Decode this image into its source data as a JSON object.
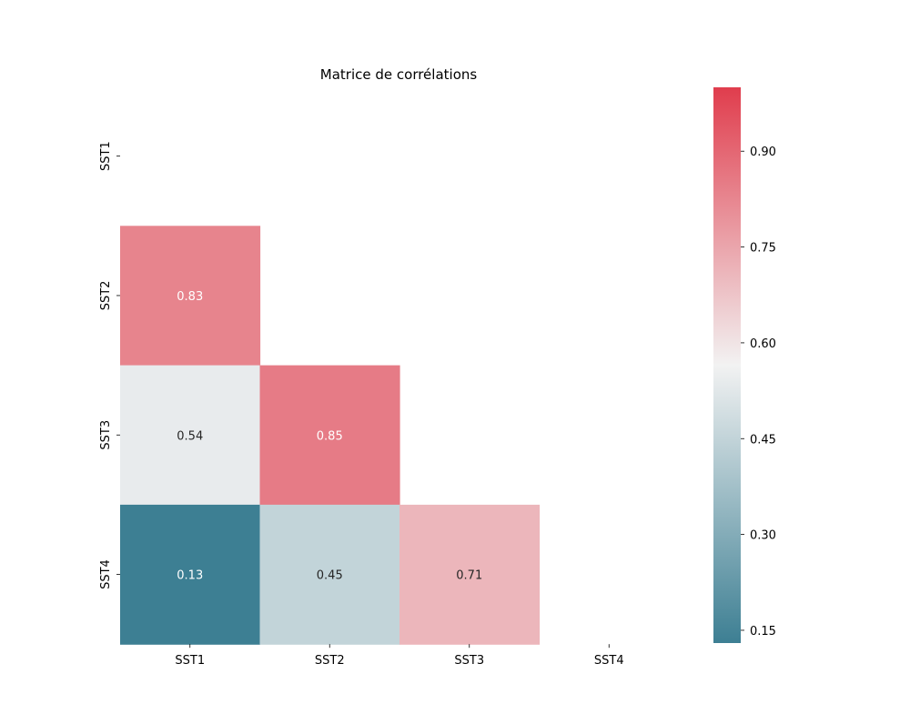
{
  "chart_data": {
    "type": "heatmap",
    "title": "Matrice de corrélations",
    "x_categories": [
      "SST1",
      "SST2",
      "SST3",
      "SST4"
    ],
    "y_categories": [
      "SST1",
      "SST2",
      "SST3",
      "SST4"
    ],
    "mask": "upper-triangle-including-diagonal",
    "cells": [
      {
        "row": 1,
        "col": 0,
        "value": 0.83,
        "label": "0.83"
      },
      {
        "row": 2,
        "col": 0,
        "value": 0.54,
        "label": "0.54"
      },
      {
        "row": 2,
        "col": 1,
        "value": 0.85,
        "label": "0.85"
      },
      {
        "row": 3,
        "col": 0,
        "value": 0.13,
        "label": "0.13"
      },
      {
        "row": 3,
        "col": 1,
        "value": 0.45,
        "label": "0.45"
      },
      {
        "row": 3,
        "col": 2,
        "value": 0.71,
        "label": "0.71"
      }
    ],
    "colorbar": {
      "vmin": 0.13,
      "vmax": 1.0,
      "ticks": [
        0.15,
        0.3,
        0.45,
        0.6,
        0.75,
        0.9
      ],
      "tick_labels": [
        "0.15",
        "0.30",
        "0.45",
        "0.60",
        "0.75",
        "0.90"
      ],
      "colormap": "diverging",
      "colors": {
        "low": "#3d7f93",
        "mid": "#f2f2f2",
        "high": "#e03d4d"
      }
    }
  }
}
